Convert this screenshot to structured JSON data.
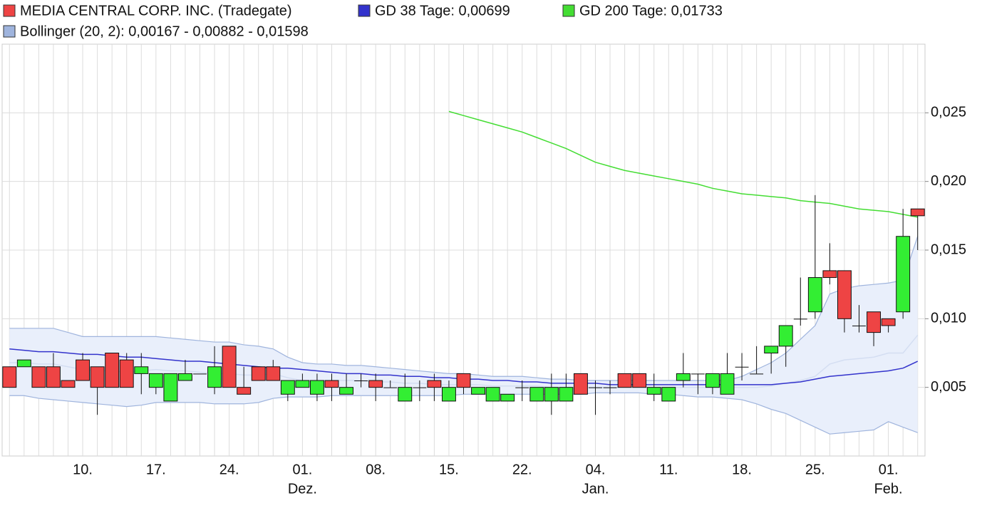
{
  "chart_data": {
    "type": "candlestick",
    "name": "MEDIA CENTRAL CORP. INC. (Tradegate)",
    "up_color": "#33ee33",
    "down_color": "#ee4444",
    "legend_color": "#ee4444",
    "categories": [
      null,
      null,
      null,
      null,
      null,
      "10.",
      null,
      null,
      null,
      null,
      "17.",
      null,
      null,
      null,
      null,
      "24.",
      null,
      null,
      null,
      null,
      "01.",
      null,
      null,
      null,
      null,
      "08.",
      null,
      null,
      null,
      null,
      "15.",
      null,
      null,
      null,
      null,
      "22.",
      null,
      null,
      null,
      null,
      "04.",
      null,
      null,
      null,
      null,
      "11.",
      null,
      null,
      null,
      null,
      "18.",
      null,
      null,
      null,
      null,
      "25.",
      null,
      null,
      null,
      null,
      "01.",
      null,
      null
    ],
    "months": [
      null,
      null,
      null,
      null,
      null,
      null,
      null,
      null,
      null,
      null,
      null,
      null,
      null,
      null,
      null,
      null,
      null,
      null,
      null,
      null,
      "Dez.",
      null,
      null,
      null,
      null,
      null,
      null,
      null,
      null,
      null,
      null,
      null,
      null,
      null,
      null,
      null,
      null,
      null,
      null,
      null,
      "Jan.",
      null,
      null,
      null,
      null,
      null,
      null,
      null,
      null,
      null,
      null,
      null,
      null,
      null,
      null,
      null,
      null,
      null,
      null,
      null,
      "Feb.",
      null,
      null
    ],
    "open": [
      0.0065,
      0.0065,
      0.0065,
      0.0065,
      0.0055,
      0.007,
      0.0065,
      0.0075,
      0.007,
      0.006,
      0.005,
      0.004,
      0.0055,
      0.006,
      0.005,
      0.008,
      0.005,
      0.0065,
      0.0065,
      0.0045,
      0.005,
      0.0045,
      0.0055,
      0.0045,
      0.0055,
      0.0055,
      0.005,
      0.004,
      0.005,
      0.0055,
      0.004,
      0.006,
      0.0045,
      0.004,
      0.004,
      0.005,
      0.004,
      0.004,
      0.004,
      0.006,
      0.005,
      0.005,
      0.006,
      0.006,
      0.0045,
      0.004,
      0.0055,
      0.006,
      0.005,
      0.0045,
      0.0065,
      0.006,
      0.0075,
      0.008,
      0.01,
      0.0105,
      0.0135,
      0.0135,
      0.0095,
      0.0105,
      0.01,
      0.0105,
      0.018
    ],
    "high": [
      0.0065,
      0.007,
      0.0065,
      0.0075,
      0.0055,
      0.0075,
      0.0065,
      0.0075,
      0.0075,
      0.0075,
      0.006,
      0.006,
      0.007,
      0.006,
      0.008,
      0.008,
      0.0065,
      0.0065,
      0.007,
      0.0055,
      0.006,
      0.006,
      0.006,
      0.006,
      0.006,
      0.006,
      0.0055,
      0.006,
      0.0055,
      0.006,
      0.0055,
      0.006,
      0.005,
      0.005,
      0.0045,
      0.0055,
      0.005,
      0.006,
      0.006,
      0.006,
      0.0055,
      0.0055,
      0.006,
      0.006,
      0.006,
      0.005,
      0.0075,
      0.006,
      0.006,
      0.0075,
      0.0075,
      0.008,
      0.008,
      0.0095,
      0.013,
      0.019,
      0.0155,
      0.0135,
      0.011,
      0.0105,
      0.01,
      0.018,
      0.018
    ],
    "low": [
      0.005,
      0.0065,
      0.005,
      0.005,
      0.005,
      0.0055,
      0.003,
      0.005,
      0.005,
      0.0045,
      0.0045,
      0.004,
      0.0055,
      0.006,
      0.0045,
      0.005,
      0.0045,
      0.0055,
      0.0055,
      0.004,
      0.005,
      0.004,
      0.004,
      0.0045,
      0.005,
      0.004,
      0.005,
      0.004,
      0.004,
      0.004,
      0.004,
      0.0045,
      0.0045,
      0.004,
      0.004,
      0.004,
      0.004,
      0.003,
      0.004,
      0.0045,
      0.003,
      0.0045,
      0.005,
      0.005,
      0.004,
      0.004,
      0.005,
      0.0045,
      0.0045,
      0.0045,
      0.0055,
      0.006,
      0.006,
      0.0065,
      0.0095,
      0.01,
      0.0125,
      0.009,
      0.009,
      0.008,
      0.009,
      0.01,
      0.015
    ],
    "close": [
      0.005,
      0.007,
      0.005,
      0.005,
      0.005,
      0.0055,
      0.005,
      0.005,
      0.005,
      0.0065,
      0.006,
      0.006,
      0.006,
      0.006,
      0.0065,
      0.005,
      0.0045,
      0.0055,
      0.0055,
      0.0055,
      0.0055,
      0.0055,
      0.005,
      0.005,
      0.0055,
      0.005,
      0.005,
      0.005,
      0.005,
      0.005,
      0.005,
      0.005,
      0.005,
      0.005,
      0.0045,
      0.005,
      0.005,
      0.005,
      0.005,
      0.0045,
      0.005,
      0.005,
      0.005,
      0.005,
      0.005,
      0.005,
      0.006,
      0.006,
      0.006,
      0.006,
      0.0065,
      0.006,
      0.008,
      0.0095,
      0.01,
      0.013,
      0.013,
      0.01,
      0.0095,
      0.009,
      0.0095,
      0.016,
      0.0175
    ],
    "lines": [
      {
        "name": "GD 38 Tage: 0,00699",
        "color": "#3333cc",
        "values": [
          0.0078,
          0.0077,
          0.0076,
          0.0076,
          0.0075,
          0.0074,
          0.0074,
          0.0073,
          0.0072,
          0.0072,
          0.0071,
          0.007,
          0.0069,
          0.0069,
          0.0068,
          0.0067,
          0.0066,
          0.0065,
          0.0064,
          0.0064,
          0.0063,
          0.0062,
          0.0061,
          0.006,
          0.006,
          0.0059,
          0.0059,
          0.0058,
          0.0058,
          0.0057,
          0.0057,
          0.0056,
          0.0056,
          0.0055,
          0.0055,
          0.0054,
          0.0054,
          0.0053,
          0.0053,
          0.0053,
          0.0053,
          0.0052,
          0.0052,
          0.0052,
          0.0052,
          0.0052,
          0.0052,
          0.0052,
          0.0052,
          0.0052,
          0.0052,
          0.0052,
          0.0052,
          0.0053,
          0.0054,
          0.0056,
          0.0058,
          0.0059,
          0.006,
          0.0061,
          0.0062,
          0.0064,
          0.0069
        ]
      },
      {
        "name": "GD 200 Tage: 0,01733",
        "color": "#44dd33",
        "values": [
          null,
          null,
          null,
          null,
          null,
          null,
          null,
          null,
          null,
          null,
          null,
          null,
          null,
          null,
          null,
          null,
          null,
          null,
          null,
          null,
          null,
          null,
          null,
          null,
          null,
          null,
          null,
          null,
          null,
          null,
          0.0251,
          0.0248,
          0.0245,
          0.0242,
          0.0239,
          0.0236,
          0.0232,
          0.0228,
          0.0224,
          0.0219,
          0.0214,
          0.0211,
          0.0208,
          0.0206,
          0.0204,
          0.0202,
          0.02,
          0.0198,
          0.0195,
          0.0193,
          0.0191,
          0.019,
          0.0189,
          0.0188,
          0.0186,
          0.0185,
          0.0184,
          0.0182,
          0.018,
          0.0179,
          0.0178,
          0.0176,
          0.0174
        ]
      }
    ],
    "bollinger": {
      "name": "Bollinger (20, 2): 0,00167 - 0,00882 - 0,01598",
      "color": "#9fb4dd",
      "fill": "#e9effb",
      "upper": [
        0.0093,
        0.0093,
        0.0093,
        0.0093,
        0.009,
        0.0087,
        0.0087,
        0.0087,
        0.0087,
        0.0087,
        0.0087,
        0.0086,
        0.0085,
        0.0084,
        0.0083,
        0.0083,
        0.0081,
        0.008,
        0.0078,
        0.0072,
        0.0068,
        0.0067,
        0.0067,
        0.0066,
        0.0066,
        0.0065,
        0.0064,
        0.0063,
        0.0062,
        0.0061,
        0.006,
        0.006,
        0.0059,
        0.0058,
        0.0058,
        0.0058,
        0.0057,
        0.0056,
        0.0056,
        0.0055,
        0.0055,
        0.0055,
        0.0055,
        0.0055,
        0.0055,
        0.0055,
        0.0055,
        0.0055,
        0.0055,
        0.0055,
        0.0058,
        0.0063,
        0.0068,
        0.0075,
        0.0085,
        0.0095,
        0.0118,
        0.0122,
        0.0124,
        0.0125,
        0.0126,
        0.0128,
        0.016
      ],
      "middle": [
        0.0068,
        0.0068,
        0.0067,
        0.0067,
        0.0065,
        0.0063,
        0.0062,
        0.0062,
        0.0061,
        0.0062,
        0.0063,
        0.0062,
        0.0062,
        0.0061,
        0.006,
        0.006,
        0.0059,
        0.0059,
        0.006,
        0.0057,
        0.0055,
        0.0055,
        0.0055,
        0.0055,
        0.0055,
        0.0054,
        0.0054,
        0.0053,
        0.0053,
        0.0052,
        0.0052,
        0.0052,
        0.0052,
        0.0051,
        0.0051,
        0.0051,
        0.0051,
        0.005,
        0.005,
        0.005,
        0.005,
        0.005,
        0.005,
        0.005,
        0.005,
        0.005,
        0.005,
        0.005,
        0.005,
        0.005,
        0.005,
        0.005,
        0.0051,
        0.0053,
        0.0055,
        0.0058,
        0.0067,
        0.007,
        0.0071,
        0.0072,
        0.0075,
        0.0075,
        0.0088
      ],
      "lower": [
        0.0044,
        0.0044,
        0.0042,
        0.0041,
        0.004,
        0.0039,
        0.0038,
        0.0037,
        0.0036,
        0.0037,
        0.0039,
        0.0039,
        0.0039,
        0.0039,
        0.0038,
        0.0038,
        0.0038,
        0.0039,
        0.0042,
        0.0043,
        0.0043,
        0.0043,
        0.0044,
        0.0044,
        0.0044,
        0.0044,
        0.0044,
        0.0044,
        0.0044,
        0.0044,
        0.0044,
        0.0045,
        0.0045,
        0.0045,
        0.0045,
        0.0045,
        0.0045,
        0.0045,
        0.0045,
        0.0045,
        0.0046,
        0.0046,
        0.0046,
        0.0046,
        0.0045,
        0.0045,
        0.0044,
        0.0043,
        0.0043,
        0.0042,
        0.0041,
        0.0038,
        0.0034,
        0.0031,
        0.0026,
        0.0021,
        0.0016,
        0.0017,
        0.0018,
        0.0019,
        0.0025,
        0.0021,
        0.0017
      ]
    },
    "ylim": [
      0,
      0.03
    ],
    "yticks": [
      {
        "value": 0.005,
        "label": "0,005"
      },
      {
        "value": 0.01,
        "label": "0,010"
      },
      {
        "value": 0.015,
        "label": "0,015"
      },
      {
        "value": 0.02,
        "label": "0,020"
      },
      {
        "value": 0.025,
        "label": "0,025"
      }
    ],
    "grid": true
  }
}
